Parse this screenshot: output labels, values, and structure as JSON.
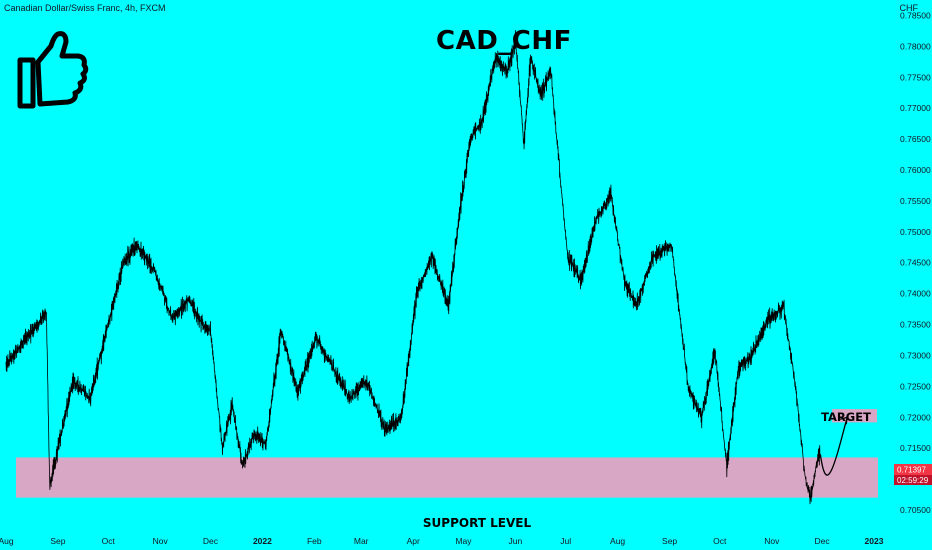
{
  "header": {
    "symbol_info": "Canadian Dollar/Swiss Franc, 4h, FXCM",
    "currency": "CHF"
  },
  "icons": {
    "thumb": "thumbs-up-icon"
  },
  "colors": {
    "background": "#00FFFF",
    "line": "#000000",
    "zone": "#D8A7C5",
    "price_tag": "#F23645",
    "price_tag_timer": "#C0122B"
  },
  "chart_data": {
    "type": "line",
    "title": "CAD_CHF",
    "xlabel": "",
    "ylabel": "",
    "ylim": [
      0.705,
      0.7875
    ],
    "grid": false,
    "y_ticks": [
      "0.78500",
      "0.78000",
      "0.77500",
      "0.77000",
      "0.76500",
      "0.76000",
      "0.75500",
      "0.75000",
      "0.74500",
      "0.74000",
      "0.73500",
      "0.73000",
      "0.72500",
      "0.72000",
      "0.71500",
      "0.71000",
      "0.70500"
    ],
    "x_ticks": [
      "Aug",
      "Sep",
      "Oct",
      "Nov",
      "Dec",
      "2022",
      "Feb",
      "Mar",
      "Apr",
      "May",
      "Jun",
      "Jul",
      "Aug",
      "Sep",
      "Oct",
      "Nov",
      "Dec",
      "2023"
    ],
    "x": [
      "2021-08-01",
      "2021-08-25",
      "2021-08-27",
      "2021-09-10",
      "2021-09-20",
      "2021-10-10",
      "2021-10-18",
      "2021-10-28",
      "2021-11-08",
      "2021-11-18",
      "2021-11-26",
      "2021-12-01",
      "2021-12-08",
      "2021-12-14",
      "2021-12-20",
      "2021-12-27",
      "2022-01-03",
      "2022-01-12",
      "2022-01-22",
      "2022-02-02",
      "2022-02-12",
      "2022-02-22",
      "2022-03-04",
      "2022-03-15",
      "2022-03-25",
      "2022-04-03",
      "2022-04-12",
      "2022-04-22",
      "2022-04-29",
      "2022-05-05",
      "2022-05-12",
      "2022-05-20",
      "2022-05-27",
      "2022-06-01",
      "2022-06-06",
      "2022-06-10",
      "2022-06-16",
      "2022-06-22",
      "2022-07-02",
      "2022-07-10",
      "2022-07-19",
      "2022-07-28",
      "2022-08-05",
      "2022-08-12",
      "2022-08-22",
      "2022-09-02",
      "2022-09-12",
      "2022-09-20",
      "2022-09-28",
      "2022-10-05",
      "2022-10-12",
      "2022-10-20",
      "2022-10-30",
      "2022-11-08",
      "2022-11-15",
      "2022-11-21",
      "2022-11-24",
      "2022-11-28",
      "2022-11-30"
    ],
    "series": [
      {
        "values": [
          0.7285,
          0.737,
          0.709,
          0.726,
          0.723,
          0.745,
          0.748,
          0.744,
          0.736,
          0.739,
          0.735,
          0.734,
          0.715,
          0.722,
          0.712,
          0.7175,
          0.7155,
          0.734,
          0.724,
          0.733,
          0.728,
          0.723,
          0.726,
          0.718,
          0.72,
          0.74,
          0.746,
          0.738,
          0.754,
          0.765,
          0.768,
          0.778,
          0.776,
          0.781,
          0.764,
          0.778,
          0.772,
          0.776,
          0.746,
          0.742,
          0.752,
          0.756,
          0.742,
          0.738,
          0.746,
          0.748,
          0.725,
          0.72,
          0.731,
          0.712,
          0.728,
          0.73,
          0.736,
          0.738,
          0.725,
          0.71,
          0.707,
          0.713,
          0.714
        ]
      }
    ],
    "projection": {
      "x": [
        "2022-11-30",
        "2022-12-02",
        "2022-12-08",
        "2022-12-16"
      ],
      "y": [
        0.714,
        0.71,
        0.714,
        0.72
      ]
    },
    "zones": [
      {
        "label": "SUPPORT LEVEL",
        "y_low": 0.707,
        "y_high": 0.7135,
        "x_start": "2021-08-01",
        "x_end": "2023-01-01"
      },
      {
        "label": "TARGET",
        "y_low": 0.7195,
        "y_high": 0.721,
        "x_start": "2022-12-07",
        "x_end": "2023-01-01"
      }
    ],
    "last_price": "0.71397",
    "countdown": "02:59:29"
  }
}
